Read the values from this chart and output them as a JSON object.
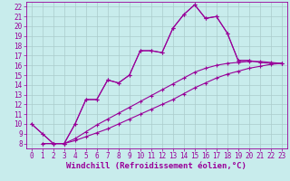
{
  "xlabel": "Windchill (Refroidissement éolien,°C)",
  "bg_color": "#c8ecec",
  "line_color": "#990099",
  "grid_color": "#aacccc",
  "xlim": [
    -0.5,
    23.5
  ],
  "ylim": [
    7.5,
    22.5
  ],
  "yticks": [
    8,
    9,
    10,
    11,
    12,
    13,
    14,
    15,
    16,
    17,
    18,
    19,
    20,
    21,
    22
  ],
  "xticks": [
    0,
    1,
    2,
    3,
    4,
    5,
    6,
    7,
    8,
    9,
    10,
    11,
    12,
    13,
    14,
    15,
    16,
    17,
    18,
    19,
    20,
    21,
    22,
    23
  ],
  "lines": [
    {
      "x": [
        1,
        2,
        3,
        4,
        5,
        6,
        7,
        8,
        9,
        10,
        11,
        12,
        13,
        14,
        15,
        16,
        17,
        18,
        19,
        20,
        21,
        22,
        23
      ],
      "y": [
        8,
        8,
        8,
        8.3,
        8.7,
        9.1,
        9.5,
        10.0,
        10.5,
        11.0,
        11.5,
        12.0,
        12.5,
        13.1,
        13.7,
        14.2,
        14.7,
        15.1,
        15.4,
        15.7,
        15.9,
        16.1,
        16.2
      ]
    },
    {
      "x": [
        1,
        2,
        3,
        4,
        5,
        6,
        7,
        8,
        9,
        10,
        11,
        12,
        13,
        14,
        15,
        16,
        17,
        18,
        19,
        20,
        21,
        22,
        23
      ],
      "y": [
        8,
        8,
        8,
        8.5,
        9.2,
        9.9,
        10.5,
        11.1,
        11.7,
        12.3,
        12.9,
        13.5,
        14.1,
        14.7,
        15.3,
        15.7,
        16.0,
        16.2,
        16.3,
        16.4,
        16.4,
        16.3,
        16.2
      ]
    },
    {
      "x": [
        0,
        1,
        2,
        3,
        4,
        5,
        6,
        7,
        8,
        9,
        10,
        11,
        12,
        13,
        14,
        15,
        16,
        17,
        18,
        19,
        20
      ],
      "y": [
        10,
        9,
        8,
        8,
        10,
        12.5,
        12.5,
        14.5,
        14.2,
        15.0,
        17.5,
        17.5,
        17.3,
        19.8,
        21.2,
        22.2,
        20.8,
        21.0,
        19.3,
        16.5,
        16.5
      ]
    },
    {
      "x": [
        0,
        1,
        2,
        3,
        4,
        5,
        6,
        7,
        8,
        9,
        10,
        11,
        12,
        13,
        14,
        15,
        16,
        17,
        18,
        19,
        20,
        21,
        22,
        23
      ],
      "y": [
        10,
        9,
        8,
        8,
        10,
        12.5,
        12.5,
        14.5,
        14.2,
        15.0,
        17.5,
        17.5,
        17.3,
        19.8,
        21.2,
        22.2,
        20.8,
        21.0,
        19.3,
        16.5,
        16.5,
        16.3,
        16.2,
        16.2
      ]
    }
  ],
  "tick_fontsize": 5.5,
  "label_fontsize": 6.5
}
